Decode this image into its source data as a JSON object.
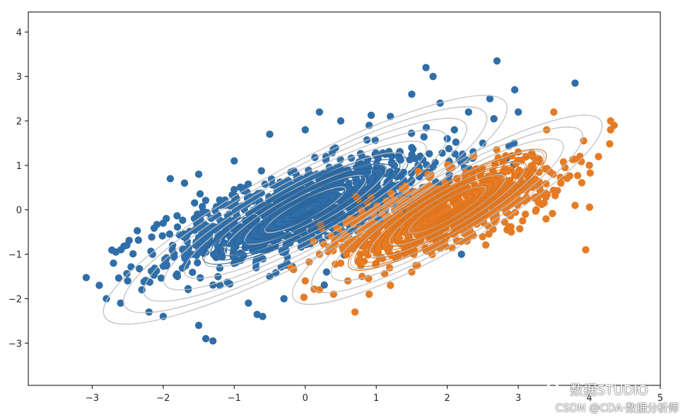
{
  "chart_data": {
    "type": "scatter",
    "xlim": [
      -3.9,
      5.0
    ],
    "ylim": [
      -3.95,
      4.45
    ],
    "x_ticks": [
      -3,
      -2,
      -1,
      0,
      1,
      2,
      3,
      4,
      5
    ],
    "y_ticks": [
      -3,
      -2,
      -1,
      0,
      1,
      2,
      3,
      4
    ],
    "x_tick_labels": [
      "−3",
      "−2",
      "−1",
      "0",
      "1",
      "2",
      "3",
      "4",
      "5"
    ],
    "y_tick_labels": [
      "−3",
      "−2",
      "−1",
      "0",
      "1",
      "2",
      "3",
      "4"
    ],
    "grid": false,
    "series": [
      {
        "color": "#2f6ea8",
        "center": [
          0.0,
          0.0
        ],
        "x": [
          -2.9,
          -2.8,
          -2.7,
          -2.6,
          -2.5,
          -2.2,
          -2.0,
          -1.9,
          -1.7,
          -1.6,
          -1.5,
          -1.4,
          -1.3,
          -1.2,
          -1.0,
          -0.6,
          -0.5,
          -0.3,
          0.0,
          0.2,
          0.5,
          0.8,
          0.9,
          1.2,
          1.5,
          1.7,
          1.8,
          1.9,
          2.1,
          2.3,
          2.5,
          2.6,
          2.7,
          2.95,
          3.0,
          3.8,
          -2.0,
          -1.8,
          -1.5,
          -1.0,
          -0.5,
          0.5,
          1.0,
          1.5,
          2.0,
          2.2,
          -2.3,
          -1.2,
          -0.8,
          0.3
        ],
        "y": [
          -1.7,
          -2.0,
          -1.2,
          -2.1,
          -1.6,
          -2.3,
          -0.3,
          0.7,
          0.6,
          -1.0,
          -2.6,
          -2.9,
          -2.95,
          0.1,
          1.1,
          -2.4,
          1.7,
          -2.0,
          1.8,
          2.2,
          2.0,
          1.2,
          1.9,
          2.1,
          2.6,
          3.2,
          3.0,
          2.4,
          1.8,
          2.2,
          1.5,
          2.5,
          3.35,
          2.7,
          2.2,
          2.85,
          -2.4,
          -1.5,
          0.8,
          -0.3,
          -1.5,
          0.5,
          0.8,
          1.4,
          1.6,
          -1.0,
          -1.8,
          -1.7,
          -2.1,
          -1.4
        ]
      },
      {
        "color": "#e57c25",
        "center": [
          2.0,
          0.0
        ],
        "x": [
          0.0,
          0.2,
          0.4,
          0.6,
          0.7,
          0.8,
          1.0,
          1.2,
          1.4,
          1.6,
          1.8,
          2.0,
          2.2,
          2.4,
          2.6,
          2.8,
          3.0,
          3.2,
          3.4,
          3.5,
          3.6,
          3.8,
          3.95,
          4.0,
          4.3,
          4.3,
          4.35,
          3.3,
          3.1,
          2.9,
          1.5,
          1.2,
          0.9,
          0.5,
          -0.2
        ],
        "y": [
          -1.6,
          -1.8,
          -1.9,
          -1.6,
          -2.3,
          -1.5,
          -1.2,
          -1.0,
          -0.9,
          -0.7,
          -0.4,
          -0.3,
          0.1,
          0.4,
          0.6,
          0.9,
          1.3,
          1.0,
          1.8,
          2.2,
          0.6,
          0.1,
          -0.9,
          1.0,
          2.0,
          1.8,
          1.9,
          0.5,
          -0.1,
          -0.5,
          -1.4,
          -1.7,
          -1.9,
          -1.2,
          -1.3
        ]
      }
    ]
  },
  "watermark": {
    "line1": "数据STUDIO",
    "line2": "CSDN @CDA·数据分析师",
    "icon": "wechat-icon"
  }
}
